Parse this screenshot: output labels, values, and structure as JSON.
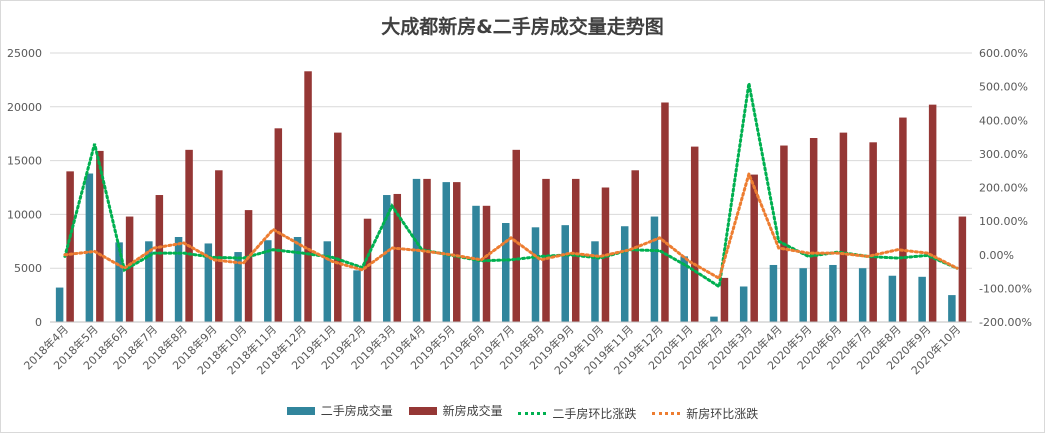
{
  "chart_data": {
    "type": "bar",
    "title": "大成都新房&二手房成交量走势图",
    "categories": [
      "2018年4月",
      "2018年5月",
      "2018年6月",
      "2018年7月",
      "2018年8月",
      "2018年9月",
      "2018年10月",
      "2018年11月",
      "2018年12月",
      "2019年1月",
      "2019年2月",
      "2019年3月",
      "2019年4月",
      "2019年5月",
      "2019年6月",
      "2019年7月",
      "2019年8月",
      "2019年9月",
      "2019年10月",
      "2019年11月",
      "2019年12月",
      "2020年1月",
      "2020年2月",
      "2020年3月",
      "2020年4月",
      "2020年5月",
      "2020年6月",
      "2020年7月",
      "2020年8月",
      "2020年9月",
      "2020年10月"
    ],
    "series": [
      {
        "name": "二手房成交量",
        "type": "bar",
        "axis": "left",
        "color": "#31859c",
        "values": [
          3200,
          13800,
          7400,
          7500,
          7900,
          7300,
          6500,
          7600,
          7900,
          7500,
          4800,
          11800,
          13300,
          13000,
          10800,
          9200,
          8800,
          9000,
          7500,
          8900,
          9800,
          6100,
          500,
          3300,
          5300,
          5000,
          5300,
          5000,
          4300,
          4200,
          2500
        ]
      },
      {
        "name": "新房成交量",
        "type": "bar",
        "axis": "left",
        "color": "#953735",
        "values": [
          14000,
          15900,
          9800,
          11800,
          16000,
          14100,
          10400,
          18000,
          23300,
          17600,
          9600,
          11900,
          13300,
          13000,
          10800,
          16000,
          13300,
          13300,
          12500,
          14100,
          20400,
          16300,
          4100,
          13700,
          16400,
          17100,
          17600,
          16700,
          19000,
          20200,
          9800
        ]
      },
      {
        "name": "二手房环比涨跌",
        "type": "line",
        "axis": "right",
        "color": "#00b050",
        "values": [
          -5,
          330,
          -45,
          5,
          5,
          -8,
          -10,
          15,
          5,
          -8,
          -38,
          145,
          15,
          -2,
          -18,
          -15,
          -5,
          0,
          -10,
          15,
          12,
          -38,
          -95,
          510,
          40,
          -5,
          8,
          -5,
          -10,
          -2,
          -40
        ]
      },
      {
        "name": "新房环比涨跌",
        "type": "line",
        "axis": "right",
        "color": "#ed7d31",
        "values": [
          0,
          10,
          -40,
          20,
          35,
          -15,
          -25,
          75,
          25,
          -20,
          -45,
          20,
          12,
          0,
          -15,
          50,
          -15,
          5,
          -5,
          15,
          50,
          -20,
          -70,
          240,
          20,
          5,
          5,
          -5,
          15,
          5,
          -40
        ]
      }
    ],
    "y_left": {
      "min": 0,
      "max": 25000,
      "ticks": [
        "0",
        "5000",
        "10000",
        "15000",
        "20000",
        "25000"
      ]
    },
    "y_right": {
      "min": -200,
      "max": 600,
      "ticks": [
        "-200.00%",
        "-100.00%",
        "0.00%",
        "100.00%",
        "200.00%",
        "300.00%",
        "400.00%",
        "500.00%",
        "600.00%"
      ]
    },
    "gridlines": true,
    "legend_position": "bottom"
  }
}
